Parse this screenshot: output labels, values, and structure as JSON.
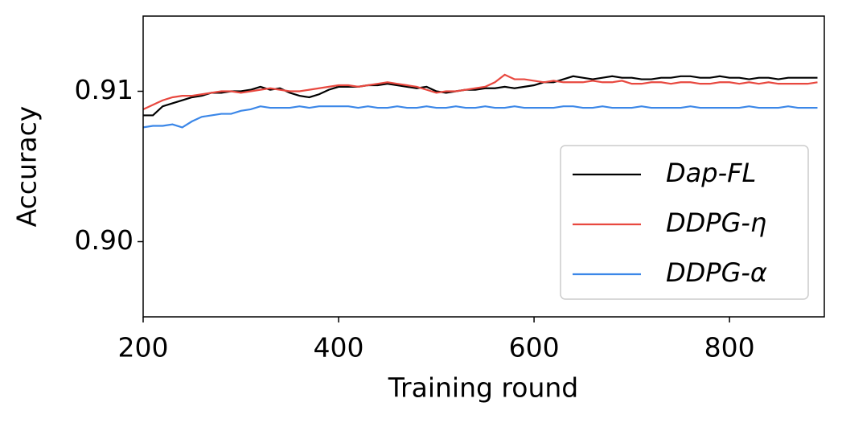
{
  "chart_data": {
    "type": "line",
    "x_label": "Training round",
    "y_label": "Accuracy",
    "x": [
      200,
      210,
      220,
      230,
      240,
      250,
      260,
      270,
      280,
      290,
      300,
      310,
      320,
      330,
      340,
      350,
      360,
      370,
      380,
      390,
      400,
      410,
      420,
      430,
      440,
      450,
      460,
      470,
      480,
      490,
      500,
      510,
      520,
      530,
      540,
      550,
      560,
      570,
      580,
      590,
      600,
      610,
      620,
      630,
      640,
      650,
      660,
      670,
      680,
      690,
      700,
      710,
      720,
      730,
      740,
      750,
      760,
      770,
      780,
      790,
      800,
      810,
      820,
      830,
      840,
      850,
      860,
      870,
      880,
      890
    ],
    "series": [
      {
        "name": "Dap-FL",
        "color": "#000000",
        "values": [
          0.9084,
          0.9084,
          0.909,
          0.9092,
          0.9094,
          0.9096,
          0.9097,
          0.9099,
          0.9099,
          0.91,
          0.91,
          0.9101,
          0.9103,
          0.9101,
          0.9102,
          0.9099,
          0.9097,
          0.9096,
          0.9098,
          0.9101,
          0.9103,
          0.9103,
          0.9103,
          0.9104,
          0.9104,
          0.9105,
          0.9104,
          0.9103,
          0.9102,
          0.9103,
          0.91,
          0.9099,
          0.91,
          0.9101,
          0.9101,
          0.9102,
          0.9102,
          0.9103,
          0.9102,
          0.9103,
          0.9104,
          0.9106,
          0.9106,
          0.9108,
          0.911,
          0.9109,
          0.9108,
          0.9109,
          0.911,
          0.9109,
          0.9109,
          0.9108,
          0.9108,
          0.9109,
          0.9109,
          0.911,
          0.911,
          0.9109,
          0.9109,
          0.911,
          0.9109,
          0.9109,
          0.9108,
          0.9109,
          0.9109,
          0.9108,
          0.9109,
          0.9109,
          0.9109,
          0.9109
        ]
      },
      {
        "name": "DDPG-η",
        "color": "#e8483f",
        "values": [
          0.9088,
          0.9091,
          0.9094,
          0.9096,
          0.9097,
          0.9097,
          0.9098,
          0.9099,
          0.91,
          0.91,
          0.9099,
          0.91,
          0.9101,
          0.9102,
          0.9101,
          0.91,
          0.91,
          0.9101,
          0.9102,
          0.9103,
          0.9104,
          0.9104,
          0.9103,
          0.9104,
          0.9105,
          0.9106,
          0.9105,
          0.9104,
          0.9103,
          0.9101,
          0.9099,
          0.91,
          0.91,
          0.9101,
          0.9102,
          0.9103,
          0.9106,
          0.9111,
          0.9108,
          0.9108,
          0.9107,
          0.9106,
          0.9107,
          0.9106,
          0.9106,
          0.9106,
          0.9107,
          0.9106,
          0.9106,
          0.9107,
          0.9105,
          0.9105,
          0.9106,
          0.9106,
          0.9105,
          0.9106,
          0.9106,
          0.9105,
          0.9105,
          0.9106,
          0.9106,
          0.9105,
          0.9106,
          0.9105,
          0.9106,
          0.9105,
          0.9105,
          0.9105,
          0.9105,
          0.9106
        ]
      },
      {
        "name": "DDPG-α",
        "color": "#3b87e8",
        "values": [
          0.9076,
          0.9077,
          0.9077,
          0.9078,
          0.9076,
          0.908,
          0.9083,
          0.9084,
          0.9085,
          0.9085,
          0.9087,
          0.9088,
          0.909,
          0.9089,
          0.9089,
          0.9089,
          0.909,
          0.9089,
          0.909,
          0.909,
          0.909,
          0.909,
          0.9089,
          0.909,
          0.9089,
          0.9089,
          0.909,
          0.9089,
          0.9089,
          0.909,
          0.9089,
          0.9089,
          0.909,
          0.9089,
          0.9089,
          0.909,
          0.9089,
          0.9089,
          0.909,
          0.9089,
          0.9089,
          0.9089,
          0.9089,
          0.909,
          0.909,
          0.9089,
          0.9089,
          0.909,
          0.9089,
          0.9089,
          0.9089,
          0.909,
          0.9089,
          0.9089,
          0.9089,
          0.9089,
          0.909,
          0.9089,
          0.9089,
          0.9089,
          0.9089,
          0.9089,
          0.909,
          0.9089,
          0.9089,
          0.9089,
          0.909,
          0.9089,
          0.9089,
          0.9089
        ]
      }
    ],
    "xlim": [
      200,
      897
    ],
    "ylim": [
      0.895,
      0.915
    ],
    "xticks": [
      200,
      400,
      600,
      800
    ],
    "yticks": [
      {
        "value": 0.9,
        "label": "0.90"
      },
      0.91
    ],
    "grid": false,
    "legend": "lower right"
  }
}
